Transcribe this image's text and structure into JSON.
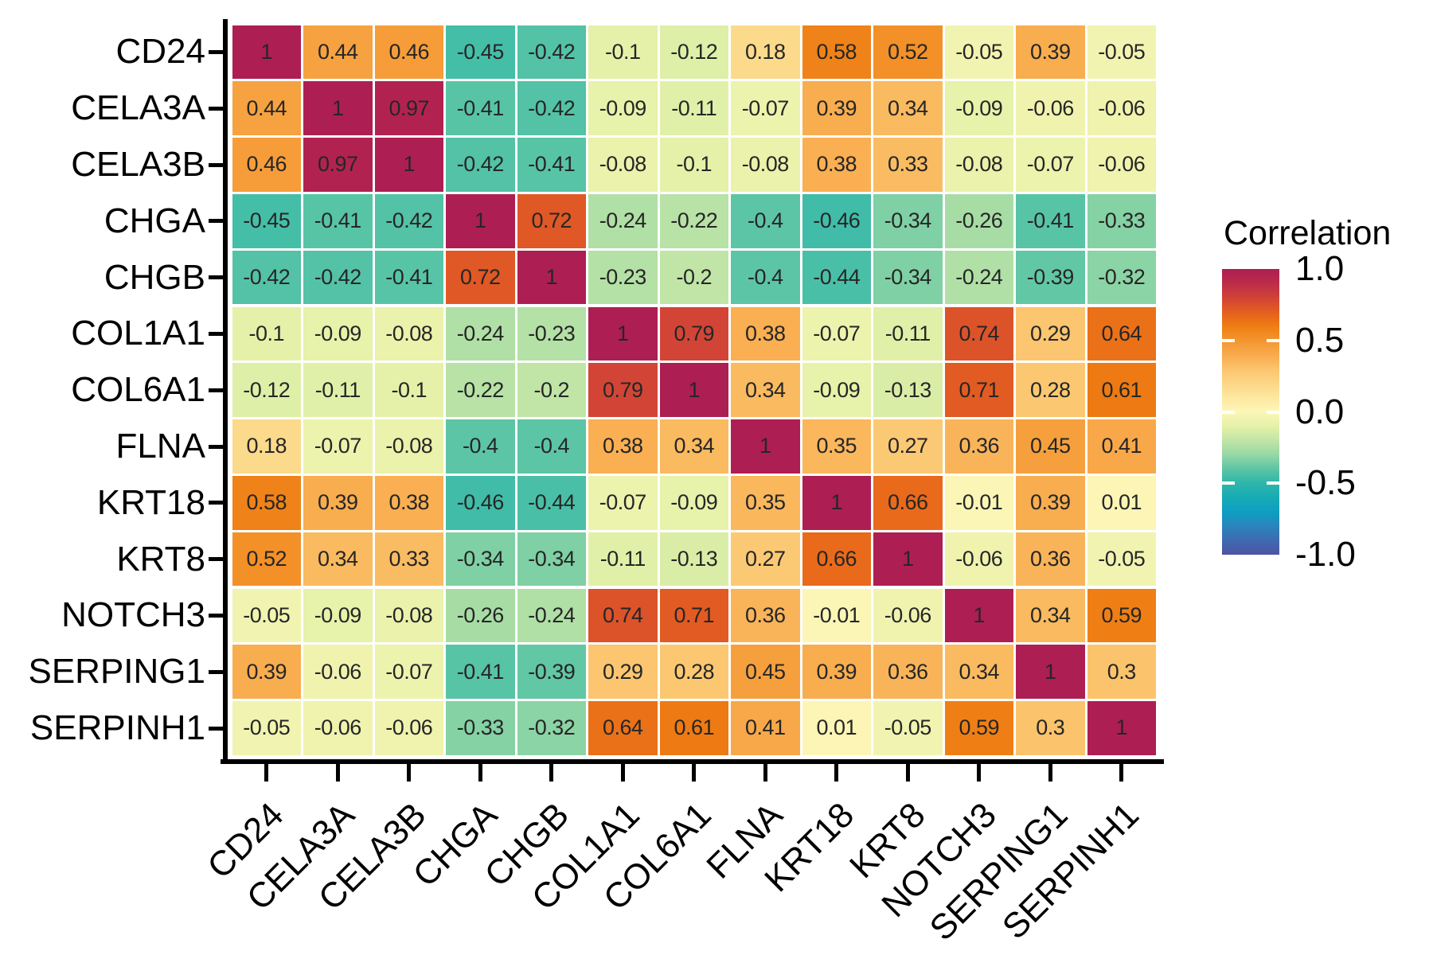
{
  "chart_data": {
    "type": "heatmap",
    "legend_title": "Correlation",
    "labels": [
      "CD24",
      "CELA3A",
      "CELA3B",
      "CHGA",
      "CHGB",
      "COL1A1",
      "COL6A1",
      "FLNA",
      "KRT18",
      "KRT8",
      "NOTCH3",
      "SERPING1",
      "SERPINH1"
    ],
    "matrix": [
      [
        1,
        0.44,
        0.46,
        -0.45,
        -0.42,
        -0.1,
        -0.12,
        0.18,
        0.58,
        0.52,
        -0.05,
        0.39,
        -0.05
      ],
      [
        0.44,
        1,
        0.97,
        -0.41,
        -0.42,
        -0.09,
        -0.11,
        -0.07,
        0.39,
        0.34,
        -0.09,
        -0.06,
        -0.06
      ],
      [
        0.46,
        0.97,
        1,
        -0.42,
        -0.41,
        -0.08,
        -0.1,
        -0.08,
        0.38,
        0.33,
        -0.08,
        -0.07,
        -0.06
      ],
      [
        -0.45,
        -0.41,
        -0.42,
        1,
        0.72,
        -0.24,
        -0.22,
        -0.4,
        -0.46,
        -0.34,
        -0.26,
        -0.41,
        -0.33
      ],
      [
        -0.42,
        -0.42,
        -0.41,
        0.72,
        1,
        -0.23,
        -0.2,
        -0.4,
        -0.44,
        -0.34,
        -0.24,
        -0.39,
        -0.32
      ],
      [
        -0.1,
        -0.09,
        -0.08,
        -0.24,
        -0.23,
        1,
        0.79,
        0.38,
        -0.07,
        -0.11,
        0.74,
        0.29,
        0.64
      ],
      [
        -0.12,
        -0.11,
        -0.1,
        -0.22,
        -0.2,
        0.79,
        1,
        0.34,
        -0.09,
        -0.13,
        0.71,
        0.28,
        0.61
      ],
      [
        0.18,
        -0.07,
        -0.08,
        -0.4,
        -0.4,
        0.38,
        0.34,
        1,
        0.35,
        0.27,
        0.36,
        0.45,
        0.41
      ],
      [
        0.58,
        0.39,
        0.38,
        -0.46,
        -0.44,
        -0.07,
        -0.09,
        0.35,
        1,
        0.66,
        -0.01,
        0.39,
        0.01
      ],
      [
        0.52,
        0.34,
        0.33,
        -0.34,
        -0.34,
        -0.11,
        -0.13,
        0.27,
        0.66,
        1,
        -0.06,
        0.36,
        -0.05
      ],
      [
        -0.05,
        -0.09,
        -0.08,
        -0.26,
        -0.24,
        0.74,
        0.71,
        0.36,
        -0.01,
        -0.06,
        1,
        0.34,
        0.59
      ],
      [
        0.39,
        -0.06,
        -0.07,
        -0.41,
        -0.39,
        0.29,
        0.28,
        0.45,
        0.39,
        0.36,
        0.34,
        1,
        0.3
      ],
      [
        -0.05,
        -0.06,
        -0.06,
        -0.33,
        -0.32,
        0.64,
        0.61,
        0.41,
        0.01,
        -0.05,
        0.59,
        0.3,
        1
      ]
    ],
    "value_range": [
      -1,
      1
    ],
    "colorbar_ticks": [
      {
        "label": "1.0",
        "value": 1.0
      },
      {
        "label": "0.5",
        "value": 0.5
      },
      {
        "label": "0.0",
        "value": 0.0
      },
      {
        "label": "-0.5",
        "value": -0.5
      },
      {
        "label": "-1.0",
        "value": -1.0
      }
    ],
    "colorscale": [
      {
        "v": 1.0,
        "color": "#ad1e53"
      },
      {
        "v": 0.9,
        "color": "#bc2c49"
      },
      {
        "v": 0.8,
        "color": "#d04238"
      },
      {
        "v": 0.7,
        "color": "#e45e20"
      },
      {
        "v": 0.6,
        "color": "#ee7d12"
      },
      {
        "v": 0.5,
        "color": "#f4952e"
      },
      {
        "v": 0.4,
        "color": "#f8aa4c"
      },
      {
        "v": 0.3,
        "color": "#fbc46c"
      },
      {
        "v": 0.2,
        "color": "#fcd687"
      },
      {
        "v": 0.1,
        "color": "#fde8a0"
      },
      {
        "v": 0.0,
        "color": "#fdf6b7"
      },
      {
        "v": -0.1,
        "color": "#e5f1a8"
      },
      {
        "v": -0.2,
        "color": "#c0e5a6"
      },
      {
        "v": -0.3,
        "color": "#97d8a5"
      },
      {
        "v": -0.4,
        "color": "#5cc5a5"
      },
      {
        "v": -0.5,
        "color": "#2eb6aa"
      },
      {
        "v": -0.6,
        "color": "#17abb4"
      },
      {
        "v": -0.7,
        "color": "#0d9fc2"
      },
      {
        "v": -0.8,
        "color": "#2a84bd"
      },
      {
        "v": -0.9,
        "color": "#3f6bb0"
      },
      {
        "v": -1.0,
        "color": "#4d52a3"
      }
    ],
    "grid_gap_color": "#ffffff",
    "cell_text_color": "#262626",
    "axis_color": "#000000"
  }
}
